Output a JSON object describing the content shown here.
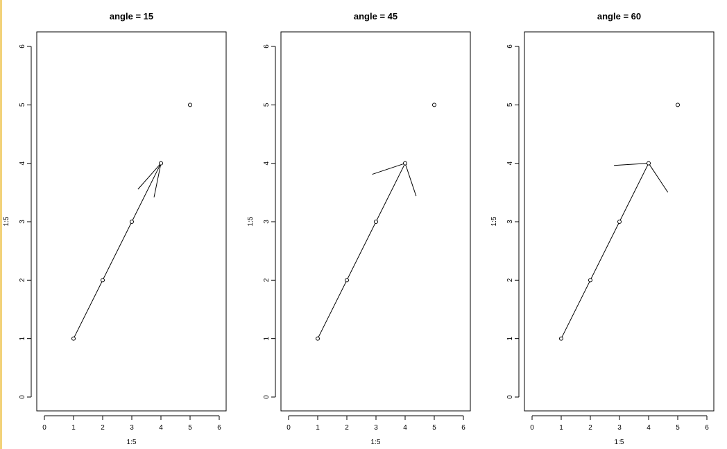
{
  "chart_data": [
    {
      "type": "scatter",
      "title": "angle = 15",
      "xlabel": "1:5",
      "ylabel": "1:5",
      "xlim": [
        0,
        6
      ],
      "ylim": [
        0,
        6
      ],
      "x_ticks": [
        "0",
        "1",
        "2",
        "3",
        "4",
        "5",
        "6"
      ],
      "y_ticks": [
        "0",
        "1",
        "2",
        "3",
        "4",
        "5",
        "6"
      ],
      "x": [
        1,
        2,
        3,
        4,
        5
      ],
      "y": [
        1,
        2,
        3,
        4,
        5
      ],
      "arrow": {
        "from": [
          1,
          1
        ],
        "to": [
          4,
          4
        ],
        "angle": 15
      },
      "grid": false
    },
    {
      "type": "scatter",
      "title": "angle = 45",
      "xlabel": "1:5",
      "ylabel": "1:5",
      "xlim": [
        0,
        6
      ],
      "ylim": [
        0,
        6
      ],
      "x_ticks": [
        "0",
        "1",
        "2",
        "3",
        "4",
        "5",
        "6"
      ],
      "y_ticks": [
        "0",
        "1",
        "2",
        "3",
        "4",
        "5",
        "6"
      ],
      "x": [
        1,
        2,
        3,
        4,
        5
      ],
      "y": [
        1,
        2,
        3,
        4,
        5
      ],
      "arrow": {
        "from": [
          1,
          1
        ],
        "to": [
          4,
          4
        ],
        "angle": 45
      },
      "grid": false
    },
    {
      "type": "scatter",
      "title": "angle = 60",
      "xlabel": "1:5",
      "ylabel": "1:5",
      "xlim": [
        0,
        6
      ],
      "ylim": [
        0,
        6
      ],
      "x_ticks": [
        "0",
        "1",
        "2",
        "3",
        "4",
        "5",
        "6"
      ],
      "y_ticks": [
        "0",
        "1",
        "2",
        "3",
        "4",
        "5",
        "6"
      ],
      "x": [
        1,
        2,
        3,
        4,
        5
      ],
      "y": [
        1,
        2,
        3,
        4,
        5
      ],
      "arrow": {
        "from": [
          1,
          1
        ],
        "to": [
          4,
          4
        ],
        "angle": 60
      },
      "grid": false
    }
  ]
}
